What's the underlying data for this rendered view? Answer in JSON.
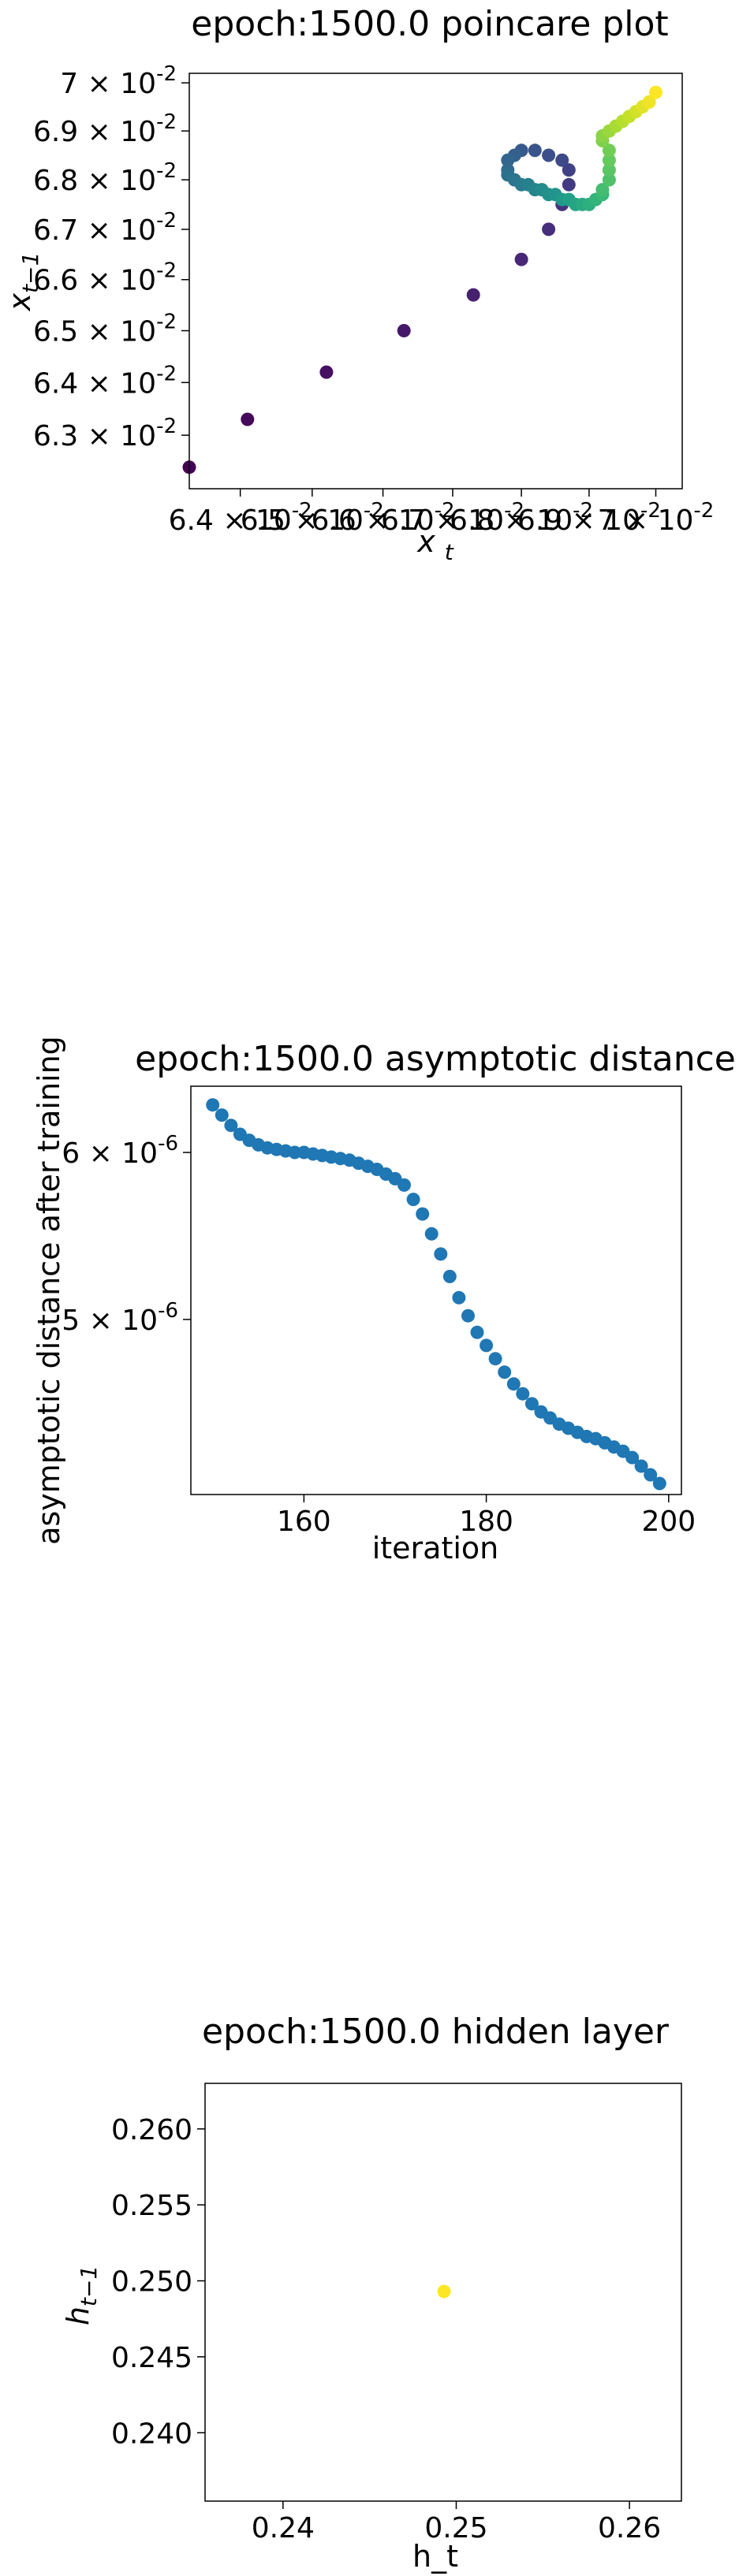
{
  "chart_data": [
    {
      "type": "scatter",
      "title": "epoch:1500.0 poincare plot",
      "xlabel": "x_t",
      "ylabel": "x_{t-1}",
      "xscale": "log",
      "yscale": "log",
      "colormap": "viridis",
      "xlim": [
        0.0633,
        0.0704
      ],
      "ylim": [
        0.062,
        0.0702
      ],
      "x_ticks": [
        {
          "value": 0.064,
          "label": "6.4 × 10^-2"
        },
        {
          "value": 0.065,
          "label": "6.5 × 10^-2"
        },
        {
          "value": 0.066,
          "label": "6.6 × 10^-2"
        },
        {
          "value": 0.067,
          "label": "6.7 × 10^-2"
        },
        {
          "value": 0.068,
          "label": "6.8 × 10^-2"
        },
        {
          "value": 0.069,
          "label": "6.9 × 10^-2"
        },
        {
          "value": 0.07,
          "label": "7 × 10^-2"
        }
      ],
      "y_ticks": [
        {
          "value": 0.063,
          "label": "6.3 × 10^-2"
        },
        {
          "value": 0.064,
          "label": "6.4 × 10^-2"
        },
        {
          "value": 0.065,
          "label": "6.5 × 10^-2"
        },
        {
          "value": 0.066,
          "label": "6.6 × 10^-2"
        },
        {
          "value": 0.067,
          "label": "6.7 × 10^-2"
        },
        {
          "value": 0.068,
          "label": "6.8 × 10^-2"
        },
        {
          "value": 0.069,
          "label": "6.9 × 10^-2"
        },
        {
          "value": 0.07,
          "label": "7 × 10^-2"
        }
      ],
      "points": [
        [
          0.0633,
          0.0624
        ],
        [
          0.0641,
          0.0633
        ],
        [
          0.0652,
          0.0642
        ],
        [
          0.0663,
          0.065
        ],
        [
          0.0673,
          0.0657
        ],
        [
          0.068,
          0.0664
        ],
        [
          0.0684,
          0.067
        ],
        [
          0.0686,
          0.0675
        ],
        [
          0.0687,
          0.0679
        ],
        [
          0.0687,
          0.0682
        ],
        [
          0.0686,
          0.0684
        ],
        [
          0.0684,
          0.0685
        ],
        [
          0.0682,
          0.0686
        ],
        [
          0.068,
          0.0686
        ],
        [
          0.0679,
          0.0685
        ],
        [
          0.0678,
          0.0684
        ],
        [
          0.0678,
          0.0682
        ],
        [
          0.0678,
          0.0681
        ],
        [
          0.0679,
          0.068
        ],
        [
          0.068,
          0.0679
        ],
        [
          0.0681,
          0.0679
        ],
        [
          0.0682,
          0.0678
        ],
        [
          0.0683,
          0.0678
        ],
        [
          0.0684,
          0.0677
        ],
        [
          0.0685,
          0.0677
        ],
        [
          0.0686,
          0.0676
        ],
        [
          0.0687,
          0.0676
        ],
        [
          0.0688,
          0.0675
        ],
        [
          0.0689,
          0.0675
        ],
        [
          0.069,
          0.0675
        ],
        [
          0.0691,
          0.0676
        ],
        [
          0.0692,
          0.0677
        ],
        [
          0.0692,
          0.0678
        ],
        [
          0.0693,
          0.068
        ],
        [
          0.0693,
          0.0682
        ],
        [
          0.0693,
          0.0684
        ],
        [
          0.0693,
          0.0686
        ],
        [
          0.0692,
          0.0688
        ],
        [
          0.0692,
          0.0689
        ],
        [
          0.0693,
          0.069
        ],
        [
          0.0694,
          0.0691
        ],
        [
          0.0695,
          0.0692
        ],
        [
          0.0696,
          0.0693
        ],
        [
          0.0697,
          0.0694
        ],
        [
          0.0698,
          0.0695
        ],
        [
          0.0699,
          0.0696
        ],
        [
          0.07,
          0.0698
        ]
      ]
    },
    {
      "type": "scatter",
      "title": "epoch:1500.0 asymptotic distance",
      "xlabel": "iteration",
      "ylabel": "asymptotic distance after training",
      "yscale": "log",
      "color": "#1f77b4",
      "xlim": [
        147.6,
        201.4
      ],
      "ylim": [
        4.13e-06,
        6.45e-06
      ],
      "x_ticks": [
        {
          "value": 160,
          "label": "160"
        },
        {
          "value": 180,
          "label": "180"
        },
        {
          "value": 200,
          "label": "200"
        }
      ],
      "y_ticks": [
        {
          "value": 5e-06,
          "label": "5 × 10^-6"
        },
        {
          "value": 6e-06,
          "label": "6 × 10^-6"
        }
      ],
      "x": [
        150,
        151,
        152,
        153,
        154,
        155,
        156,
        157,
        158,
        159,
        160,
        161,
        162,
        163,
        164,
        165,
        166,
        167,
        168,
        169,
        170,
        171,
        172,
        173,
        174,
        175,
        176,
        177,
        178,
        179,
        180,
        181,
        182,
        183,
        184,
        185,
        186,
        187,
        188,
        189,
        190,
        191,
        192,
        193,
        194,
        195,
        196,
        197,
        198,
        199
      ],
      "y": [
        6.32e-06,
        6.25e-06,
        6.18e-06,
        6.12e-06,
        6.08e-06,
        6.05e-06,
        6.03e-06,
        6.02e-06,
        6.01e-06,
        6e-06,
        6e-06,
        5.99e-06,
        5.98e-06,
        5.97e-06,
        5.96e-06,
        5.95e-06,
        5.93e-06,
        5.91e-06,
        5.89e-06,
        5.86e-06,
        5.83e-06,
        5.79e-06,
        5.7e-06,
        5.61e-06,
        5.49e-06,
        5.37e-06,
        5.24e-06,
        5.12e-06,
        5.02e-06,
        4.93e-06,
        4.86e-06,
        4.79e-06,
        4.72e-06,
        4.66e-06,
        4.61e-06,
        4.56e-06,
        4.52e-06,
        4.49e-06,
        4.46e-06,
        4.44e-06,
        4.42e-06,
        4.4e-06,
        4.39e-06,
        4.37e-06,
        4.35e-06,
        4.33e-06,
        4.3e-06,
        4.26e-06,
        4.22e-06,
        4.18e-06
      ]
    },
    {
      "type": "scatter",
      "title": "epoch:1500.0 hidden layer",
      "xlabel": "h_t",
      "ylabel": "h_{t-1}",
      "color": "#fde725",
      "xlim": [
        0.2355,
        0.263
      ],
      "ylim": [
        0.2355,
        0.263
      ],
      "x_ticks": [
        {
          "value": 0.24,
          "label": "0.24"
        },
        {
          "value": 0.25,
          "label": "0.25"
        },
        {
          "value": 0.26,
          "label": "0.26"
        }
      ],
      "y_ticks": [
        {
          "value": 0.24,
          "label": "0.240"
        },
        {
          "value": 0.245,
          "label": "0.245"
        },
        {
          "value": 0.25,
          "label": "0.250"
        },
        {
          "value": 0.255,
          "label": "0.255"
        },
        {
          "value": 0.26,
          "label": "0.260"
        }
      ],
      "points": [
        [
          0.2493,
          0.2493
        ]
      ]
    }
  ]
}
